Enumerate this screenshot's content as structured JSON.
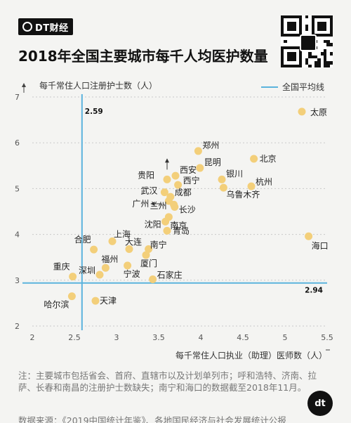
{
  "header": {
    "brand": "DT财经",
    "title": "2018年全国主要城市每千人均医护数量"
  },
  "chart_data": {
    "type": "scatter",
    "title": "2018年全国主要城市每千人均医护数量",
    "xlabel": "每千常住人口执业（助理）医师数（人）",
    "ylabel": "每千常住人口注册护士数（人）",
    "xlim": [
      2,
      5.5
    ],
    "ylim": [
      2,
      7
    ],
    "xticks": [
      "2",
      "2.5",
      "3",
      "3.5",
      "4",
      "4.5",
      "5",
      "5.5"
    ],
    "yticks": [
      "2",
      "3",
      "4",
      "5",
      "6",
      "7"
    ],
    "legend": "全国平均线",
    "avg_x": 2.59,
    "avg_y": 2.94,
    "avg_x_label": "2.59",
    "avg_y_label": "2.94",
    "marker_color": "#f3cf7a",
    "line_color": "#5bb3dd",
    "points": [
      {
        "name": "太原",
        "x": 5.2,
        "y": 6.68
      },
      {
        "name": "郑州",
        "x": 3.97,
        "y": 5.82
      },
      {
        "name": "北京",
        "x": 4.63,
        "y": 5.65
      },
      {
        "name": "昆明",
        "x": 3.99,
        "y": 5.45
      },
      {
        "name": "西安",
        "x": 3.7,
        "y": 5.28
      },
      {
        "name": "贵阳",
        "x": 3.6,
        "y": 5.2
      },
      {
        "name": "银川",
        "x": 4.25,
        "y": 5.2
      },
      {
        "name": "西宁",
        "x": 3.73,
        "y": 5.08
      },
      {
        "name": "杭州",
        "x": 4.6,
        "y": 5.05
      },
      {
        "name": "乌鲁木齐",
        "x": 4.27,
        "y": 5.02
      },
      {
        "name": "武汉",
        "x": 3.57,
        "y": 4.92
      },
      {
        "name": "成都",
        "x": 3.64,
        "y": 4.82
      },
      {
        "name": "广州",
        "x": 3.62,
        "y": 4.73
      },
      {
        "name": "兰州",
        "x": 3.68,
        "y": 4.65
      },
      {
        "name": "长沙",
        "x": 3.69,
        "y": 4.6
      },
      {
        "name": "南京",
        "x": 3.62,
        "y": 4.38
      },
      {
        "name": "沈阳",
        "x": 3.58,
        "y": 4.28
      },
      {
        "name": "青岛",
        "x": 3.6,
        "y": 4.08
      },
      {
        "name": "上海",
        "x": 2.95,
        "y": 3.85
      },
      {
        "name": "合肥",
        "x": 2.73,
        "y": 3.67
      },
      {
        "name": "大连",
        "x": 3.15,
        "y": 3.68
      },
      {
        "name": "南宁",
        "x": 3.38,
        "y": 3.68
      },
      {
        "name": "海口",
        "x": 5.28,
        "y": 3.96
      },
      {
        "name": "福州",
        "x": 2.87,
        "y": 3.27
      },
      {
        "name": "深圳",
        "x": 2.8,
        "y": 3.12
      },
      {
        "name": "厦门",
        "x": 3.35,
        "y": 3.55
      },
      {
        "name": "宁波",
        "x": 3.13,
        "y": 3.32
      },
      {
        "name": "重庆",
        "x": 2.48,
        "y": 3.08
      },
      {
        "name": "石家庄",
        "x": 3.43,
        "y": 3.02
      },
      {
        "name": "哈尔滨",
        "x": 2.47,
        "y": 2.65
      },
      {
        "name": "天津",
        "x": 2.75,
        "y": 2.55
      }
    ]
  },
  "footer": {
    "note": "注：主要城市包括省会、首府、直辖市以及计划单列市；呼和浩特、济南、拉萨、长春和南昌的注册护士数缺失；南宁和海口的数据截至2018年11月。",
    "source": "数据来源：《2019中国统计年鉴》、各地国民经济与社会发展统计公报",
    "logo_text": "dt"
  }
}
